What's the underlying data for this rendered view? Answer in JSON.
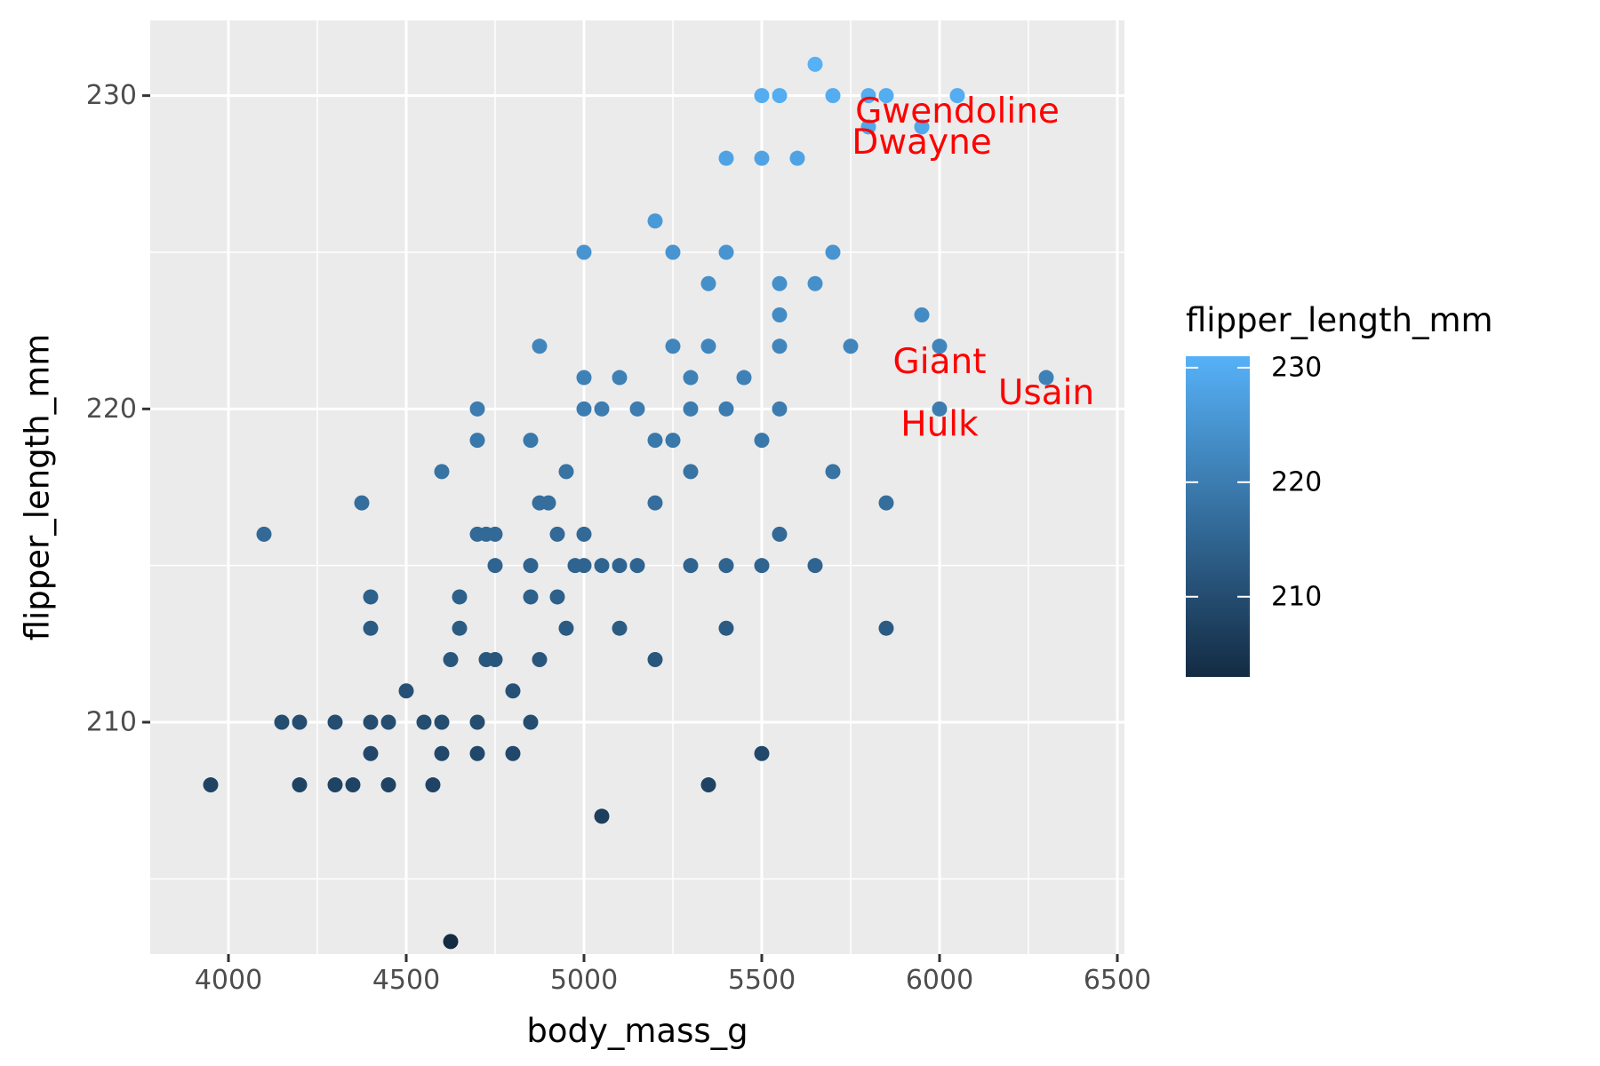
{
  "chart_data": {
    "type": "scatter",
    "xlabel": "body_mass_g",
    "ylabel": "flipper_length_mm",
    "xlim": [
      3780,
      6520
    ],
    "ylim": [
      202.6,
      232.4
    ],
    "x_ticks": [
      4000,
      4500,
      5000,
      5500,
      6000,
      6500
    ],
    "y_ticks": [
      210,
      220,
      230
    ],
    "grid": true,
    "legend": {
      "title": "flipper_length_mm",
      "position": "right",
      "type": "colorbar",
      "range": [
        203,
        231
      ],
      "ticks": [
        210,
        220,
        230
      ],
      "color_low": "#132B43",
      "color_high": "#56B1F7"
    },
    "point_color_mapping": "flipper_length_mm",
    "points": [
      {
        "x": 3950,
        "y": 208
      },
      {
        "x": 4100,
        "y": 216
      },
      {
        "x": 4150,
        "y": 210
      },
      {
        "x": 4200,
        "y": 210
      },
      {
        "x": 4200,
        "y": 208
      },
      {
        "x": 4300,
        "y": 210
      },
      {
        "x": 4300,
        "y": 208
      },
      {
        "x": 4350,
        "y": 208
      },
      {
        "x": 4375,
        "y": 217
      },
      {
        "x": 4400,
        "y": 214
      },
      {
        "x": 4400,
        "y": 213
      },
      {
        "x": 4400,
        "y": 210
      },
      {
        "x": 4400,
        "y": 209
      },
      {
        "x": 4450,
        "y": 210
      },
      {
        "x": 4450,
        "y": 208
      },
      {
        "x": 4500,
        "y": 211
      },
      {
        "x": 4550,
        "y": 210
      },
      {
        "x": 4575,
        "y": 208
      },
      {
        "x": 4600,
        "y": 218
      },
      {
        "x": 4600,
        "y": 210
      },
      {
        "x": 4600,
        "y": 209
      },
      {
        "x": 4625,
        "y": 212
      },
      {
        "x": 4625,
        "y": 203
      },
      {
        "x": 4650,
        "y": 214
      },
      {
        "x": 4650,
        "y": 213
      },
      {
        "x": 4700,
        "y": 220
      },
      {
        "x": 4700,
        "y": 219
      },
      {
        "x": 4700,
        "y": 216
      },
      {
        "x": 4700,
        "y": 210
      },
      {
        "x": 4700,
        "y": 209
      },
      {
        "x": 4725,
        "y": 216
      },
      {
        "x": 4725,
        "y": 212
      },
      {
        "x": 4750,
        "y": 216
      },
      {
        "x": 4750,
        "y": 215
      },
      {
        "x": 4750,
        "y": 212
      },
      {
        "x": 4800,
        "y": 211
      },
      {
        "x": 4800,
        "y": 209
      },
      {
        "x": 4850,
        "y": 219
      },
      {
        "x": 4850,
        "y": 215
      },
      {
        "x": 4850,
        "y": 214
      },
      {
        "x": 4850,
        "y": 210
      },
      {
        "x": 4875,
        "y": 222
      },
      {
        "x": 4875,
        "y": 217
      },
      {
        "x": 4875,
        "y": 212
      },
      {
        "x": 4900,
        "y": 217
      },
      {
        "x": 4925,
        "y": 216
      },
      {
        "x": 4925,
        "y": 214
      },
      {
        "x": 4950,
        "y": 218
      },
      {
        "x": 4950,
        "y": 213
      },
      {
        "x": 4975,
        "y": 215
      },
      {
        "x": 5000,
        "y": 225
      },
      {
        "x": 5000,
        "y": 221
      },
      {
        "x": 5000,
        "y": 220
      },
      {
        "x": 5000,
        "y": 216
      },
      {
        "x": 5000,
        "y": 215
      },
      {
        "x": 5050,
        "y": 220
      },
      {
        "x": 5050,
        "y": 215
      },
      {
        "x": 5050,
        "y": 207
      },
      {
        "x": 5100,
        "y": 221
      },
      {
        "x": 5100,
        "y": 215
      },
      {
        "x": 5100,
        "y": 213
      },
      {
        "x": 5150,
        "y": 220
      },
      {
        "x": 5150,
        "y": 215
      },
      {
        "x": 5200,
        "y": 226
      },
      {
        "x": 5200,
        "y": 219
      },
      {
        "x": 5200,
        "y": 217
      },
      {
        "x": 5200,
        "y": 212
      },
      {
        "x": 5250,
        "y": 225
      },
      {
        "x": 5250,
        "y": 222
      },
      {
        "x": 5250,
        "y": 219
      },
      {
        "x": 5300,
        "y": 221
      },
      {
        "x": 5300,
        "y": 220
      },
      {
        "x": 5300,
        "y": 218
      },
      {
        "x": 5300,
        "y": 215
      },
      {
        "x": 5350,
        "y": 224
      },
      {
        "x": 5350,
        "y": 222
      },
      {
        "x": 5350,
        "y": 208
      },
      {
        "x": 5400,
        "y": 228
      },
      {
        "x": 5400,
        "y": 225
      },
      {
        "x": 5400,
        "y": 220
      },
      {
        "x": 5400,
        "y": 215
      },
      {
        "x": 5400,
        "y": 213
      },
      {
        "x": 5450,
        "y": 221
      },
      {
        "x": 5500,
        "y": 230
      },
      {
        "x": 5500,
        "y": 228
      },
      {
        "x": 5500,
        "y": 219
      },
      {
        "x": 5500,
        "y": 215
      },
      {
        "x": 5500,
        "y": 209
      },
      {
        "x": 5550,
        "y": 230
      },
      {
        "x": 5550,
        "y": 224
      },
      {
        "x": 5550,
        "y": 223
      },
      {
        "x": 5550,
        "y": 222
      },
      {
        "x": 5550,
        "y": 220
      },
      {
        "x": 5550,
        "y": 216
      },
      {
        "x": 5600,
        "y": 228
      },
      {
        "x": 5650,
        "y": 231
      },
      {
        "x": 5650,
        "y": 224
      },
      {
        "x": 5650,
        "y": 215
      },
      {
        "x": 5700,
        "y": 230
      },
      {
        "x": 5700,
        "y": 225
      },
      {
        "x": 5700,
        "y": 218
      },
      {
        "x": 5750,
        "y": 222
      },
      {
        "x": 5800,
        "y": 230
      },
      {
        "x": 5800,
        "y": 229
      },
      {
        "x": 5850,
        "y": 230
      },
      {
        "x": 5850,
        "y": 217
      },
      {
        "x": 5850,
        "y": 213
      },
      {
        "x": 5950,
        "y": 229
      },
      {
        "x": 5950,
        "y": 223
      },
      {
        "x": 6000,
        "y": 222
      },
      {
        "x": 6000,
        "y": 220
      },
      {
        "x": 6050,
        "y": 230
      },
      {
        "x": 6300,
        "y": 221
      }
    ],
    "annotations": [
      {
        "text": "Gwendoline",
        "x": 6050,
        "y": 229.5,
        "color": "#FF0000"
      },
      {
        "text": "Dwayne",
        "x": 5950,
        "y": 228.5,
        "color": "#FF0000"
      },
      {
        "text": "Giant",
        "x": 6000,
        "y": 221.5,
        "color": "#FF0000"
      },
      {
        "text": "Usain",
        "x": 6300,
        "y": 220.5,
        "color": "#FF0000"
      },
      {
        "text": "Hulk",
        "x": 6000,
        "y": 219.5,
        "color": "#FF0000"
      }
    ]
  }
}
